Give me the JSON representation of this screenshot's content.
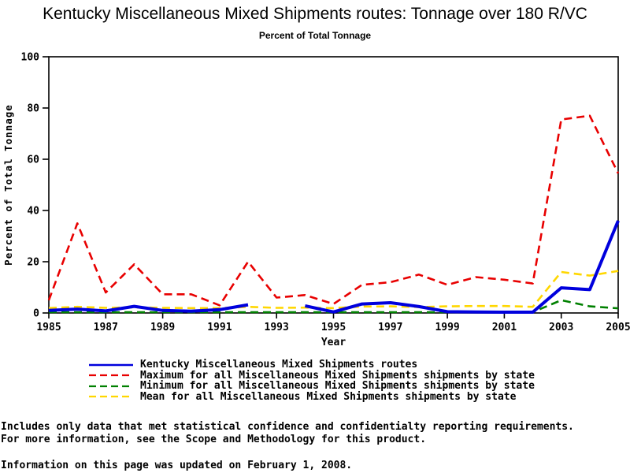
{
  "title": "Kentucky Miscellaneous Mixed Shipments routes: Tonnage over 180 R/VC",
  "subtitle": "Percent of Total Tonnage",
  "chart_data": {
    "type": "line",
    "title": "Kentucky Miscellaneous Mixed Shipments routes: Tonnage over 180 R/VC",
    "subtitle": "Percent of Total Tonnage",
    "xlabel": "Year",
    "ylabel": "Percent of Total Tonnage",
    "xlim": [
      1985,
      2005
    ],
    "ylim": [
      0,
      100
    ],
    "xticks": [
      1985,
      1987,
      1989,
      1991,
      1993,
      1995,
      1997,
      1999,
      2001,
      2003,
      2005
    ],
    "yticks": [
      0,
      20,
      40,
      60,
      80,
      100
    ],
    "grid": false,
    "legend_position": "bottom",
    "frame": true,
    "x": [
      1985,
      1986,
      1987,
      1988,
      1989,
      1990,
      1991,
      1992,
      1993,
      1994,
      1995,
      1996,
      1997,
      1998,
      1999,
      2000,
      2001,
      2002,
      2003,
      2004,
      2005
    ],
    "series": [
      {
        "name": "Kentucky Miscellaneous Mixed Shipments routes",
        "color": "#0000dd",
        "style": "solid",
        "width": 4,
        "values": [
          1.0,
          1.5,
          0.8,
          2.6,
          1.0,
          0.7,
          1.3,
          3.2,
          null,
          2.8,
          0.4,
          3.5,
          4.0,
          2.5,
          0.5,
          0.4,
          0.3,
          0.3,
          9.8,
          9.1,
          36.0
        ]
      },
      {
        "name": "Maximum for all Miscellaneous Mixed Shipments shipments by state",
        "color": "#e80000",
        "style": "dashed",
        "width": 2.6,
        "values": [
          5.0,
          35.0,
          8.0,
          19.0,
          7.3,
          7.3,
          3.0,
          20.0,
          6.0,
          7.0,
          3.5,
          11.0,
          12.0,
          15.0,
          11.0,
          14.0,
          13.0,
          11.5,
          75.5,
          77.0,
          54.5
        ]
      },
      {
        "name": "Minimum for all Miscellaneous Mixed Shipments shipments by state",
        "color": "#008000",
        "style": "dashed",
        "width": 2.6,
        "values": [
          0.3,
          0.3,
          0.3,
          0.3,
          0.3,
          0.3,
          0.3,
          0.3,
          0.3,
          0.3,
          0.3,
          0.3,
          0.3,
          0.3,
          0.3,
          0.3,
          0.3,
          0.3,
          5.0,
          2.6,
          1.8
        ]
      },
      {
        "name": "Mean for all Miscellaneous Mixed Shipments shipments by state",
        "color": "#ffd700",
        "style": "dashed",
        "width": 2.6,
        "values": [
          1.9,
          2.4,
          2.0,
          2.2,
          2.0,
          1.9,
          1.9,
          2.4,
          2.0,
          2.1,
          1.9,
          2.5,
          2.6,
          2.3,
          2.6,
          2.7,
          2.7,
          2.4,
          16.0,
          14.6,
          16.4
        ]
      }
    ]
  },
  "footer": {
    "line1": "Includes only data that met statistical confidence and confidentialty reporting requirements.",
    "line2": "For more information, see the Scope and Methodology for this product.",
    "updated": "Information on this page was updated on February 1, 2008."
  }
}
